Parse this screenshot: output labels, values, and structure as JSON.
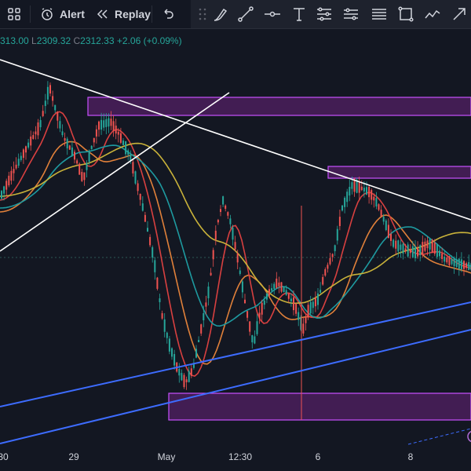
{
  "toolbar": {
    "alert_label": "Alert",
    "replay_label": "Replay",
    "icons": [
      "layout-grid-icon",
      "alert-clock-icon",
      "replay-icon",
      "undo-icon",
      "brush-icon",
      "trend-line-icon",
      "horizontal-line-icon",
      "text-icon",
      "fib-icon",
      "parallel-channel-icon",
      "horizontal-lines-icon",
      "rectangle-icon",
      "path-icon",
      "arrow-icon"
    ]
  },
  "legend": {
    "o_value": "313.00",
    "l_key": "L",
    "l_value": "2309.32",
    "c_key": "C",
    "c_value": "2312.33",
    "change": "+2.06 (+0.09%)"
  },
  "xaxis": {
    "labels": [
      "30",
      "29",
      "May",
      "12:30",
      "6",
      "8"
    ]
  },
  "colors": {
    "background": "#131722",
    "up": "#26a69a",
    "down": "#ef5350",
    "ma_slow": "#c9b23a",
    "ma_mid": "#1e9aa0",
    "ma_fast": "#e0803a",
    "ma_red": "#d84040",
    "zone_fill": "rgba(156,39,176,0.35)",
    "zone_border": "#c850ff",
    "trendline": "#ffffff",
    "channel": "#3d6cff"
  },
  "chart_data": {
    "type": "candlestick",
    "x_tick_labels": [
      "30",
      "29",
      "May",
      "12:30",
      "6",
      "8"
    ],
    "last_close": 2312.33,
    "low": 2309.32,
    "change": 2.06,
    "change_pct": 0.09,
    "moving_averages": 4,
    "supply_zones": 2,
    "demand_zones": 1,
    "trendlines": 3,
    "channel_lines": 2
  }
}
